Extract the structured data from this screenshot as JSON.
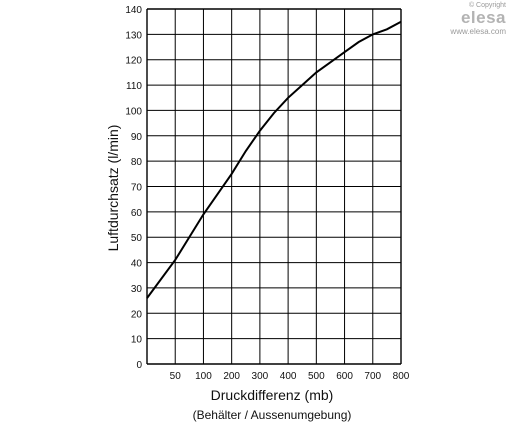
{
  "watermark": {
    "copyright": "© Copyright",
    "brand": "elesa",
    "url": "www.elesa.com"
  },
  "chart_data": {
    "type": "line",
    "title": "",
    "xlabel": "Druckdifferenz (mb)",
    "xlabel_sub": "(Behälter / Aussenumgebung)",
    "ylabel": "Luftdurchsatz (l/min)",
    "x_ticks": [
      "50",
      "100",
      "200",
      "300",
      "400",
      "500",
      "600",
      "700",
      "800"
    ],
    "x_tick_values": [
      50,
      100,
      200,
      300,
      400,
      500,
      600,
      700,
      800
    ],
    "y_ticks": [
      "0",
      "10",
      "20",
      "30",
      "40",
      "50",
      "60",
      "70",
      "80",
      "90",
      "100",
      "110",
      "120",
      "130",
      "140"
    ],
    "y_tick_values": [
      0,
      10,
      20,
      30,
      40,
      50,
      60,
      70,
      80,
      90,
      100,
      110,
      120,
      130,
      140
    ],
    "xlim": [
      0,
      800
    ],
    "ylim": [
      0,
      140
    ],
    "x_scale": "piecewise: 0-50 and 50-100 each one grid cell, then 100 per cell",
    "grid": true,
    "series": [
      {
        "x": [
          0,
          50,
          100,
          150,
          200,
          250,
          300,
          350,
          400,
          450,
          500,
          550,
          600,
          650,
          700,
          750,
          800
        ],
        "values": [
          26,
          41,
          59,
          67,
          75,
          84,
          92,
          99,
          105,
          110,
          115,
          119,
          123,
          127,
          130,
          132,
          135
        ]
      }
    ],
    "line_color": "#000000"
  }
}
